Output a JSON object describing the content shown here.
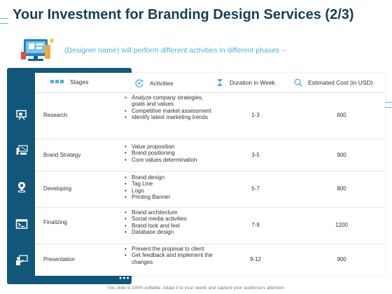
{
  "title": "Your Investment for Branding Design Services (2/3)",
  "subtitle": "(Designer name) will perform different activities in different phases –",
  "table": {
    "headers": {
      "stages": "Stages",
      "activities": "Activities",
      "duration": "Duration in Week",
      "cost": "Estimated Cost (in USD)"
    },
    "rows": [
      {
        "stage": "Research",
        "icon": "presentation-board-icon",
        "activities": [
          "Analyze company strategies, goals and values",
          "Competitive market assessment",
          "Identify latest marketing trends"
        ],
        "duration": "1-3",
        "cost": "600"
      },
      {
        "stage": "Brand Strategy",
        "icon": "strategy-board-icon",
        "activities": [
          "Value proposition",
          "Brand positioning",
          "Core values determination"
        ],
        "duration": "3-5",
        "cost": "900"
      },
      {
        "stage": "Developing",
        "icon": "location-pin-icon",
        "activities": [
          "Brand design",
          "Tag Line",
          "Logo",
          "Printing Banner"
        ],
        "duration": "5-7",
        "cost": "800"
      },
      {
        "stage": "Finalizing",
        "icon": "terminal-window-icon",
        "activities": [
          "Brand architecture",
          "Social media activities",
          "Brand look and feel",
          "Database design"
        ],
        "duration": "7-9",
        "cost": "1200"
      },
      {
        "stage": "Presentation",
        "icon": "presenter-icon",
        "activities": [
          "Present the proposal to client",
          "Get feedback and implement the changes"
        ],
        "duration": "9-12",
        "cost": "900"
      }
    ]
  },
  "footer": "This slide is 100% editable. Adapt it to your needs and capture your audience's attention.",
  "colors": {
    "title": "#1a3e56",
    "accent": "#4fb3d3",
    "sidebar": "#12577a"
  }
}
